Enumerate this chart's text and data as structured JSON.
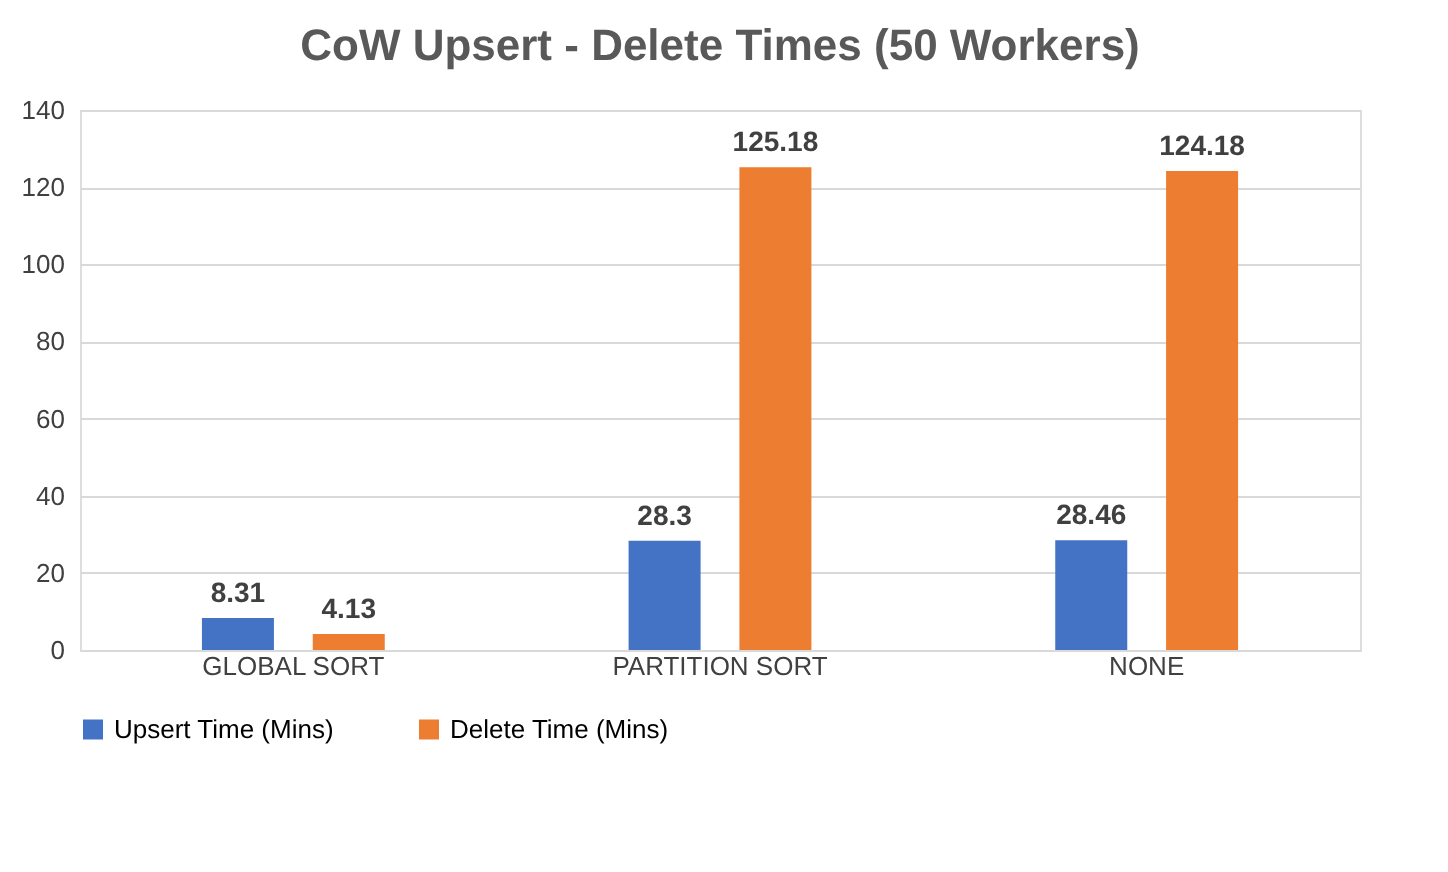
{
  "chart_data": {
    "type": "bar",
    "title": "CoW Upsert - Delete Times (50 Workers)",
    "categories": [
      "GLOBAL SORT",
      "PARTITION SORT",
      "NONE"
    ],
    "series": [
      {
        "name": "Upsert Time (Mins)",
        "color": "#4472c4",
        "values": [
          8.31,
          28.3,
          28.46
        ]
      },
      {
        "name": "Delete Time (Mins)",
        "color": "#ed7d31",
        "values": [
          4.13,
          125.18,
          124.18
        ]
      }
    ],
    "ylim": [
      0,
      140
    ],
    "yticks": [
      0,
      20,
      40,
      60,
      80,
      100,
      120,
      140
    ],
    "grid": "y",
    "legend": "bottom",
    "data_labels": true
  }
}
